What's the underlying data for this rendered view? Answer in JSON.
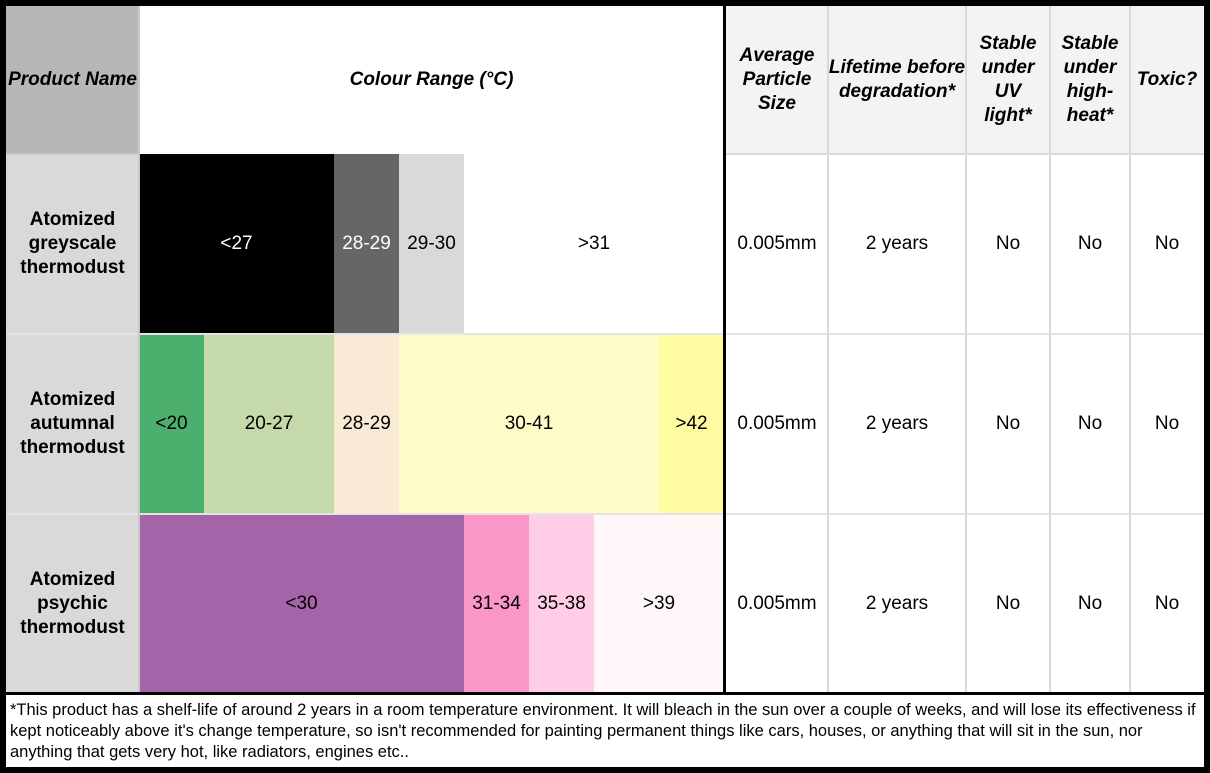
{
  "headers": {
    "product_name": "Product Name",
    "colour_range": "Colour Range (°C)",
    "particle_size": "Average Particle Size",
    "lifetime": "Lifetime before degradation*",
    "uv": "Stable under UV light*",
    "heat": "Stable under high-heat*",
    "toxic": "Toxic?"
  },
  "rows": [
    {
      "name": "Atomized greyscale thermodust",
      "segments": [
        {
          "label": "<27",
          "color": "#000000",
          "text_color": "#ffffff"
        },
        {
          "label": "28-29",
          "color": "#666666",
          "text_color": "#ffffff"
        },
        {
          "label": "29-30",
          "color": "#d9d9d9",
          "text_color": "#000000"
        },
        {
          "label": ">31",
          "color": "#ffffff",
          "text_color": "#000000"
        }
      ],
      "particle_size": "0.005mm",
      "lifetime": "2 years",
      "uv": "No",
      "heat": "No",
      "toxic": "No"
    },
    {
      "name": "Atomized autumnal thermodust",
      "segments": [
        {
          "label": "<20",
          "color": "#4caf6e",
          "text_color": "#000000"
        },
        {
          "label": "20-27",
          "color": "#c6d9aa",
          "text_color": "#000000"
        },
        {
          "label": "28-29",
          "color": "#f9ead6",
          "text_color": "#000000"
        },
        {
          "label": "30-41",
          "color": "#fffdc7",
          "text_color": "#000000"
        },
        {
          "label": ">42",
          "color": "#fffba0",
          "text_color": "#000000"
        }
      ],
      "particle_size": "0.005mm",
      "lifetime": "2 years",
      "uv": "No",
      "heat": "No",
      "toxic": "No"
    },
    {
      "name": "Atomized psychic thermodust",
      "segments": [
        {
          "label": "<30",
          "color": "#a564a8",
          "text_color": "#000000"
        },
        {
          "label": "31-34",
          "color": "#fa96c8",
          "text_color": "#000000"
        },
        {
          "label": "35-38",
          "color": "#ffcde6",
          "text_color": "#000000"
        },
        {
          "label": ">39",
          "color": "#fff7f7",
          "text_color": "#000000"
        }
      ],
      "particle_size": "0.005mm",
      "lifetime": "2 years",
      "uv": "No",
      "heat": "No",
      "toxic": "No"
    }
  ],
  "footnote": "*This product has a shelf-life of around 2 years in a room temperature environment. It will bleach in the sun over a couple of weeks, and will lose its effectiveness if kept noticeably above it's change temperature, so isn't recommended for painting permanent things like cars, houses, or anything that will sit in the sun, nor anything that gets very hot, like radiators, engines etc.."
}
